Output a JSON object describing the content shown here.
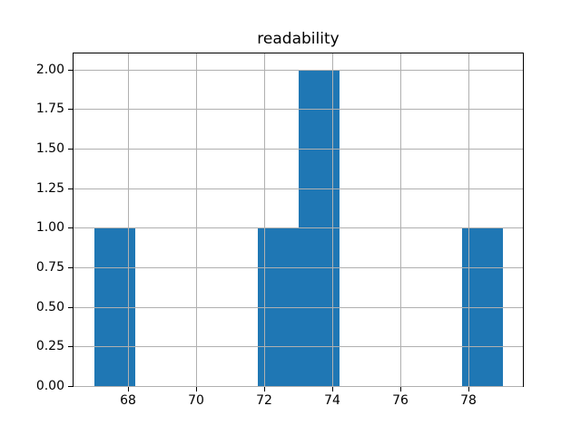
{
  "figure": {
    "background": "#ffffff"
  },
  "chart_data": {
    "type": "bar",
    "subtype": "histogram",
    "title": "readability",
    "xlabel": "",
    "ylabel": "",
    "bin_edges": [
      67.0,
      68.2,
      69.4,
      70.6,
      71.8,
      73.0,
      74.2,
      75.4,
      76.6,
      77.8,
      79.0
    ],
    "counts": [
      1,
      0,
      0,
      0,
      1,
      2,
      0,
      0,
      0,
      1
    ],
    "xlim": [
      66.4,
      79.6
    ],
    "ylim": [
      0,
      2.1
    ],
    "xticks": [
      68,
      70,
      72,
      74,
      76,
      78
    ],
    "xtick_labels": [
      "68",
      "70",
      "72",
      "74",
      "76",
      "78"
    ],
    "yticks": [
      0,
      0.25,
      0.5,
      0.75,
      1.0,
      1.25,
      1.5,
      1.75,
      2.0
    ],
    "ytick_labels": [
      "0.00",
      "0.25",
      "0.50",
      "0.75",
      "1.00",
      "1.25",
      "1.50",
      "1.75",
      "2.00"
    ],
    "grid": true,
    "grid_over_bars": true,
    "legend": null,
    "bar_color": "#1f77b4",
    "grid_color": "#b0b0b0",
    "spine_color": "#000000",
    "text_color": "#000000"
  }
}
